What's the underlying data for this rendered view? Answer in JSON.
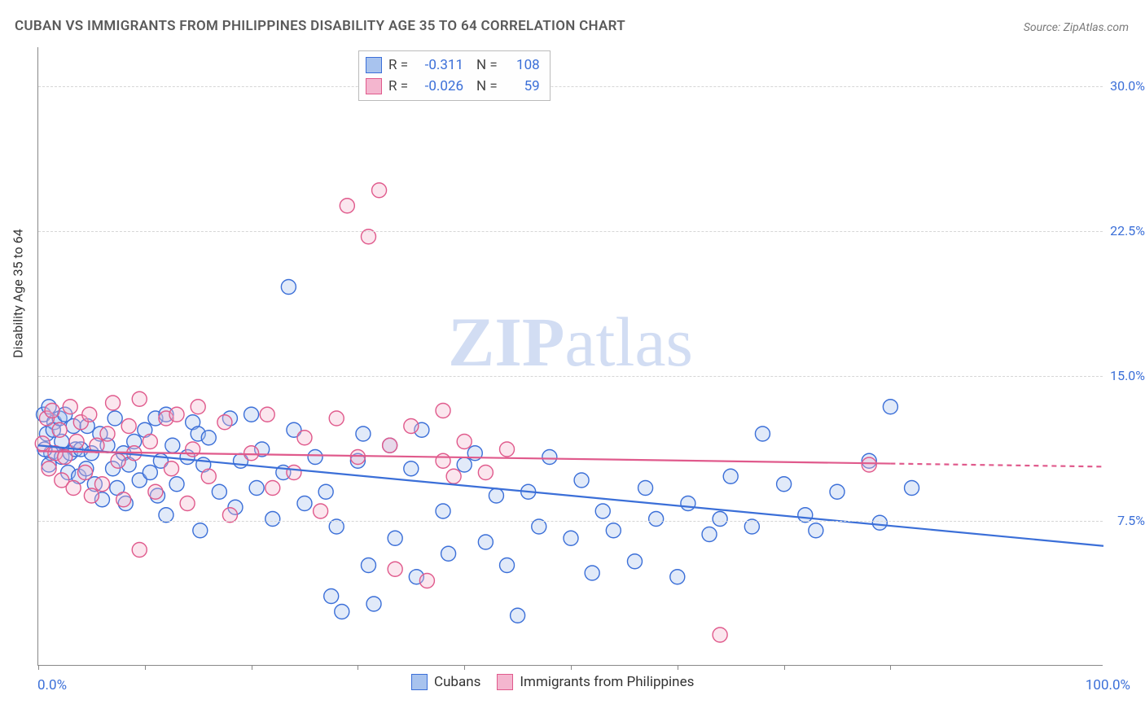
{
  "chart": {
    "title": "CUBAN VS IMMIGRANTS FROM PHILIPPINES DISABILITY AGE 35 TO 64 CORRELATION CHART",
    "source": "Source: ZipAtlas.com",
    "ylabel": "Disability Age 35 to 64",
    "watermark_bold": "ZIP",
    "watermark_light": "atlas",
    "type": "scatter",
    "background_color": "#ffffff",
    "grid_color": "#d6d6d6",
    "axis_color": "#888888",
    "text_color": "#5a5a5a",
    "tick_color": "#3b6fd8",
    "title_fontsize": 17,
    "label_fontsize": 16,
    "tick_fontsize": 16,
    "xlim": [
      0,
      100
    ],
    "ylim": [
      0,
      32
    ],
    "yticks": [
      {
        "value": 7.5,
        "label": "7.5%"
      },
      {
        "value": 15.0,
        "label": "15.0%"
      },
      {
        "value": 22.5,
        "label": "22.5%"
      },
      {
        "value": 30.0,
        "label": "30.0%"
      }
    ],
    "xtick_positions": [
      0,
      10,
      20,
      30,
      40,
      50,
      60,
      70,
      80
    ],
    "xaxis_min_label": "0.0%",
    "xaxis_max_label": "100.0%",
    "marker_radius": 9,
    "marker_fill_opacity": 0.35,
    "marker_stroke_width": 1.4,
    "trendline_width": 2.2,
    "series": [
      {
        "name": "Cubans",
        "color_stroke": "#3b6fd8",
        "color_fill": "#a8c3ee",
        "R_label": "R =",
        "R_value": "-0.311",
        "N_label": "N =",
        "N_value": "108",
        "trendline": {
          "x1": 0,
          "y1": 11.4,
          "x2": 100,
          "y2": 6.2,
          "dash_after_x": null
        },
        "points": [
          [
            0.5,
            13.0
          ],
          [
            0.8,
            12.0
          ],
          [
            1.0,
            13.4
          ],
          [
            1.2,
            11.0
          ],
          [
            1.5,
            12.6
          ],
          [
            0.6,
            11.2
          ],
          [
            1.0,
            10.4
          ],
          [
            1.4,
            12.2
          ],
          [
            2.0,
            12.8
          ],
          [
            2.2,
            10.8
          ],
          [
            2.5,
            13.0
          ],
          [
            2.2,
            11.6
          ],
          [
            2.8,
            10.0
          ],
          [
            3.0,
            11.0
          ],
          [
            3.3,
            12.4
          ],
          [
            3.5,
            11.2
          ],
          [
            3.8,
            9.8
          ],
          [
            4.0,
            11.2
          ],
          [
            4.5,
            10.2
          ],
          [
            4.6,
            12.4
          ],
          [
            5.0,
            11.0
          ],
          [
            5.3,
            9.4
          ],
          [
            5.8,
            12.0
          ],
          [
            6.0,
            8.6
          ],
          [
            6.5,
            11.4
          ],
          [
            7.0,
            10.2
          ],
          [
            7.2,
            12.8
          ],
          [
            7.4,
            9.2
          ],
          [
            8.0,
            11.0
          ],
          [
            8.2,
            8.4
          ],
          [
            8.5,
            10.4
          ],
          [
            9.0,
            11.6
          ],
          [
            9.5,
            9.6
          ],
          [
            10.0,
            12.2
          ],
          [
            10.5,
            10.0
          ],
          [
            11.0,
            12.8
          ],
          [
            11.2,
            8.8
          ],
          [
            11.5,
            10.6
          ],
          [
            12.0,
            13.0
          ],
          [
            12.0,
            7.8
          ],
          [
            12.6,
            11.4
          ],
          [
            13.0,
            9.4
          ],
          [
            14.0,
            10.8
          ],
          [
            14.5,
            12.6
          ],
          [
            15.0,
            12.0
          ],
          [
            15.2,
            7.0
          ],
          [
            15.5,
            10.4
          ],
          [
            16.0,
            11.8
          ],
          [
            17.0,
            9.0
          ],
          [
            18.0,
            12.8
          ],
          [
            18.5,
            8.2
          ],
          [
            19.0,
            10.6
          ],
          [
            20.0,
            13.0
          ],
          [
            20.5,
            9.2
          ],
          [
            21.0,
            11.2
          ],
          [
            22.0,
            7.6
          ],
          [
            23.0,
            10.0
          ],
          [
            23.5,
            19.6
          ],
          [
            24.0,
            12.2
          ],
          [
            25.0,
            8.4
          ],
          [
            26.0,
            10.8
          ],
          [
            27.0,
            9.0
          ],
          [
            27.5,
            3.6
          ],
          [
            28.0,
            7.2
          ],
          [
            28.5,
            2.8
          ],
          [
            30.0,
            10.6
          ],
          [
            30.5,
            12.0
          ],
          [
            31.0,
            5.2
          ],
          [
            31.5,
            3.2
          ],
          [
            33.0,
            11.4
          ],
          [
            33.5,
            6.6
          ],
          [
            35.0,
            10.2
          ],
          [
            35.5,
            4.6
          ],
          [
            36.0,
            12.2
          ],
          [
            38.0,
            8.0
          ],
          [
            38.5,
            5.8
          ],
          [
            40.0,
            10.4
          ],
          [
            41.0,
            11.0
          ],
          [
            42.0,
            6.4
          ],
          [
            43.0,
            8.8
          ],
          [
            44.0,
            5.2
          ],
          [
            45.0,
            2.6
          ],
          [
            46.0,
            9.0
          ],
          [
            47.0,
            7.2
          ],
          [
            48.0,
            10.8
          ],
          [
            50.0,
            6.6
          ],
          [
            51.0,
            9.6
          ],
          [
            52.0,
            4.8
          ],
          [
            53.0,
            8.0
          ],
          [
            54.0,
            7.0
          ],
          [
            56.0,
            5.4
          ],
          [
            57.0,
            9.2
          ],
          [
            58.0,
            7.6
          ],
          [
            60.0,
            4.6
          ],
          [
            61.0,
            8.4
          ],
          [
            63.0,
            6.8
          ],
          [
            64.0,
            7.6
          ],
          [
            65.0,
            9.8
          ],
          [
            67.0,
            7.2
          ],
          [
            68.0,
            12.0
          ],
          [
            70.0,
            9.4
          ],
          [
            72.0,
            7.8
          ],
          [
            73.0,
            7.0
          ],
          [
            75.0,
            9.0
          ],
          [
            78.0,
            10.6
          ],
          [
            79.0,
            7.4
          ],
          [
            80.0,
            13.4
          ],
          [
            82.0,
            9.2
          ]
        ]
      },
      {
        "name": "Immigrants from Philippines",
        "color_stroke": "#e05a8c",
        "color_fill": "#f4b6cf",
        "R_label": "R =",
        "R_value": "-0.026",
        "N_label": "N =",
        "N_value": "59",
        "trendline": {
          "x1": 0,
          "y1": 11.1,
          "x2": 100,
          "y2": 10.3,
          "dash_after_x": 80
        },
        "points": [
          [
            0.4,
            11.5
          ],
          [
            0.8,
            12.8
          ],
          [
            1.0,
            10.2
          ],
          [
            1.3,
            13.2
          ],
          [
            1.6,
            11.0
          ],
          [
            2.0,
            12.2
          ],
          [
            2.2,
            9.6
          ],
          [
            2.5,
            10.8
          ],
          [
            3.0,
            13.4
          ],
          [
            3.3,
            9.2
          ],
          [
            3.6,
            11.6
          ],
          [
            4.0,
            12.6
          ],
          [
            4.4,
            10.0
          ],
          [
            4.8,
            13.0
          ],
          [
            5.0,
            8.8
          ],
          [
            5.5,
            11.4
          ],
          [
            6.0,
            9.4
          ],
          [
            6.5,
            12.0
          ],
          [
            7.0,
            13.6
          ],
          [
            7.5,
            10.6
          ],
          [
            8.0,
            8.6
          ],
          [
            8.5,
            12.4
          ],
          [
            9.0,
            11.0
          ],
          [
            9.5,
            13.8
          ],
          [
            9.5,
            6.0
          ],
          [
            10.5,
            11.6
          ],
          [
            11.0,
            9.0
          ],
          [
            12.0,
            12.8
          ],
          [
            12.5,
            10.2
          ],
          [
            13.0,
            13.0
          ],
          [
            14.0,
            8.4
          ],
          [
            14.5,
            11.2
          ],
          [
            15.0,
            13.4
          ],
          [
            16.0,
            9.8
          ],
          [
            17.5,
            12.6
          ],
          [
            18.0,
            7.8
          ],
          [
            20.0,
            11.0
          ],
          [
            21.5,
            13.0
          ],
          [
            22.0,
            9.2
          ],
          [
            24.0,
            10.0
          ],
          [
            25.0,
            11.8
          ],
          [
            26.5,
            8.0
          ],
          [
            28.0,
            12.8
          ],
          [
            29.0,
            23.8
          ],
          [
            30.0,
            10.8
          ],
          [
            31.0,
            22.2
          ],
          [
            32.0,
            24.6
          ],
          [
            33.0,
            11.4
          ],
          [
            33.5,
            5.0
          ],
          [
            35.0,
            12.4
          ],
          [
            36.5,
            4.4
          ],
          [
            38.0,
            10.6
          ],
          [
            39.0,
            9.8
          ],
          [
            40.0,
            11.6
          ],
          [
            42.0,
            10.0
          ],
          [
            44.0,
            11.2
          ],
          [
            64.0,
            1.6
          ],
          [
            78.0,
            10.4
          ],
          [
            38.0,
            13.2
          ]
        ]
      }
    ]
  }
}
